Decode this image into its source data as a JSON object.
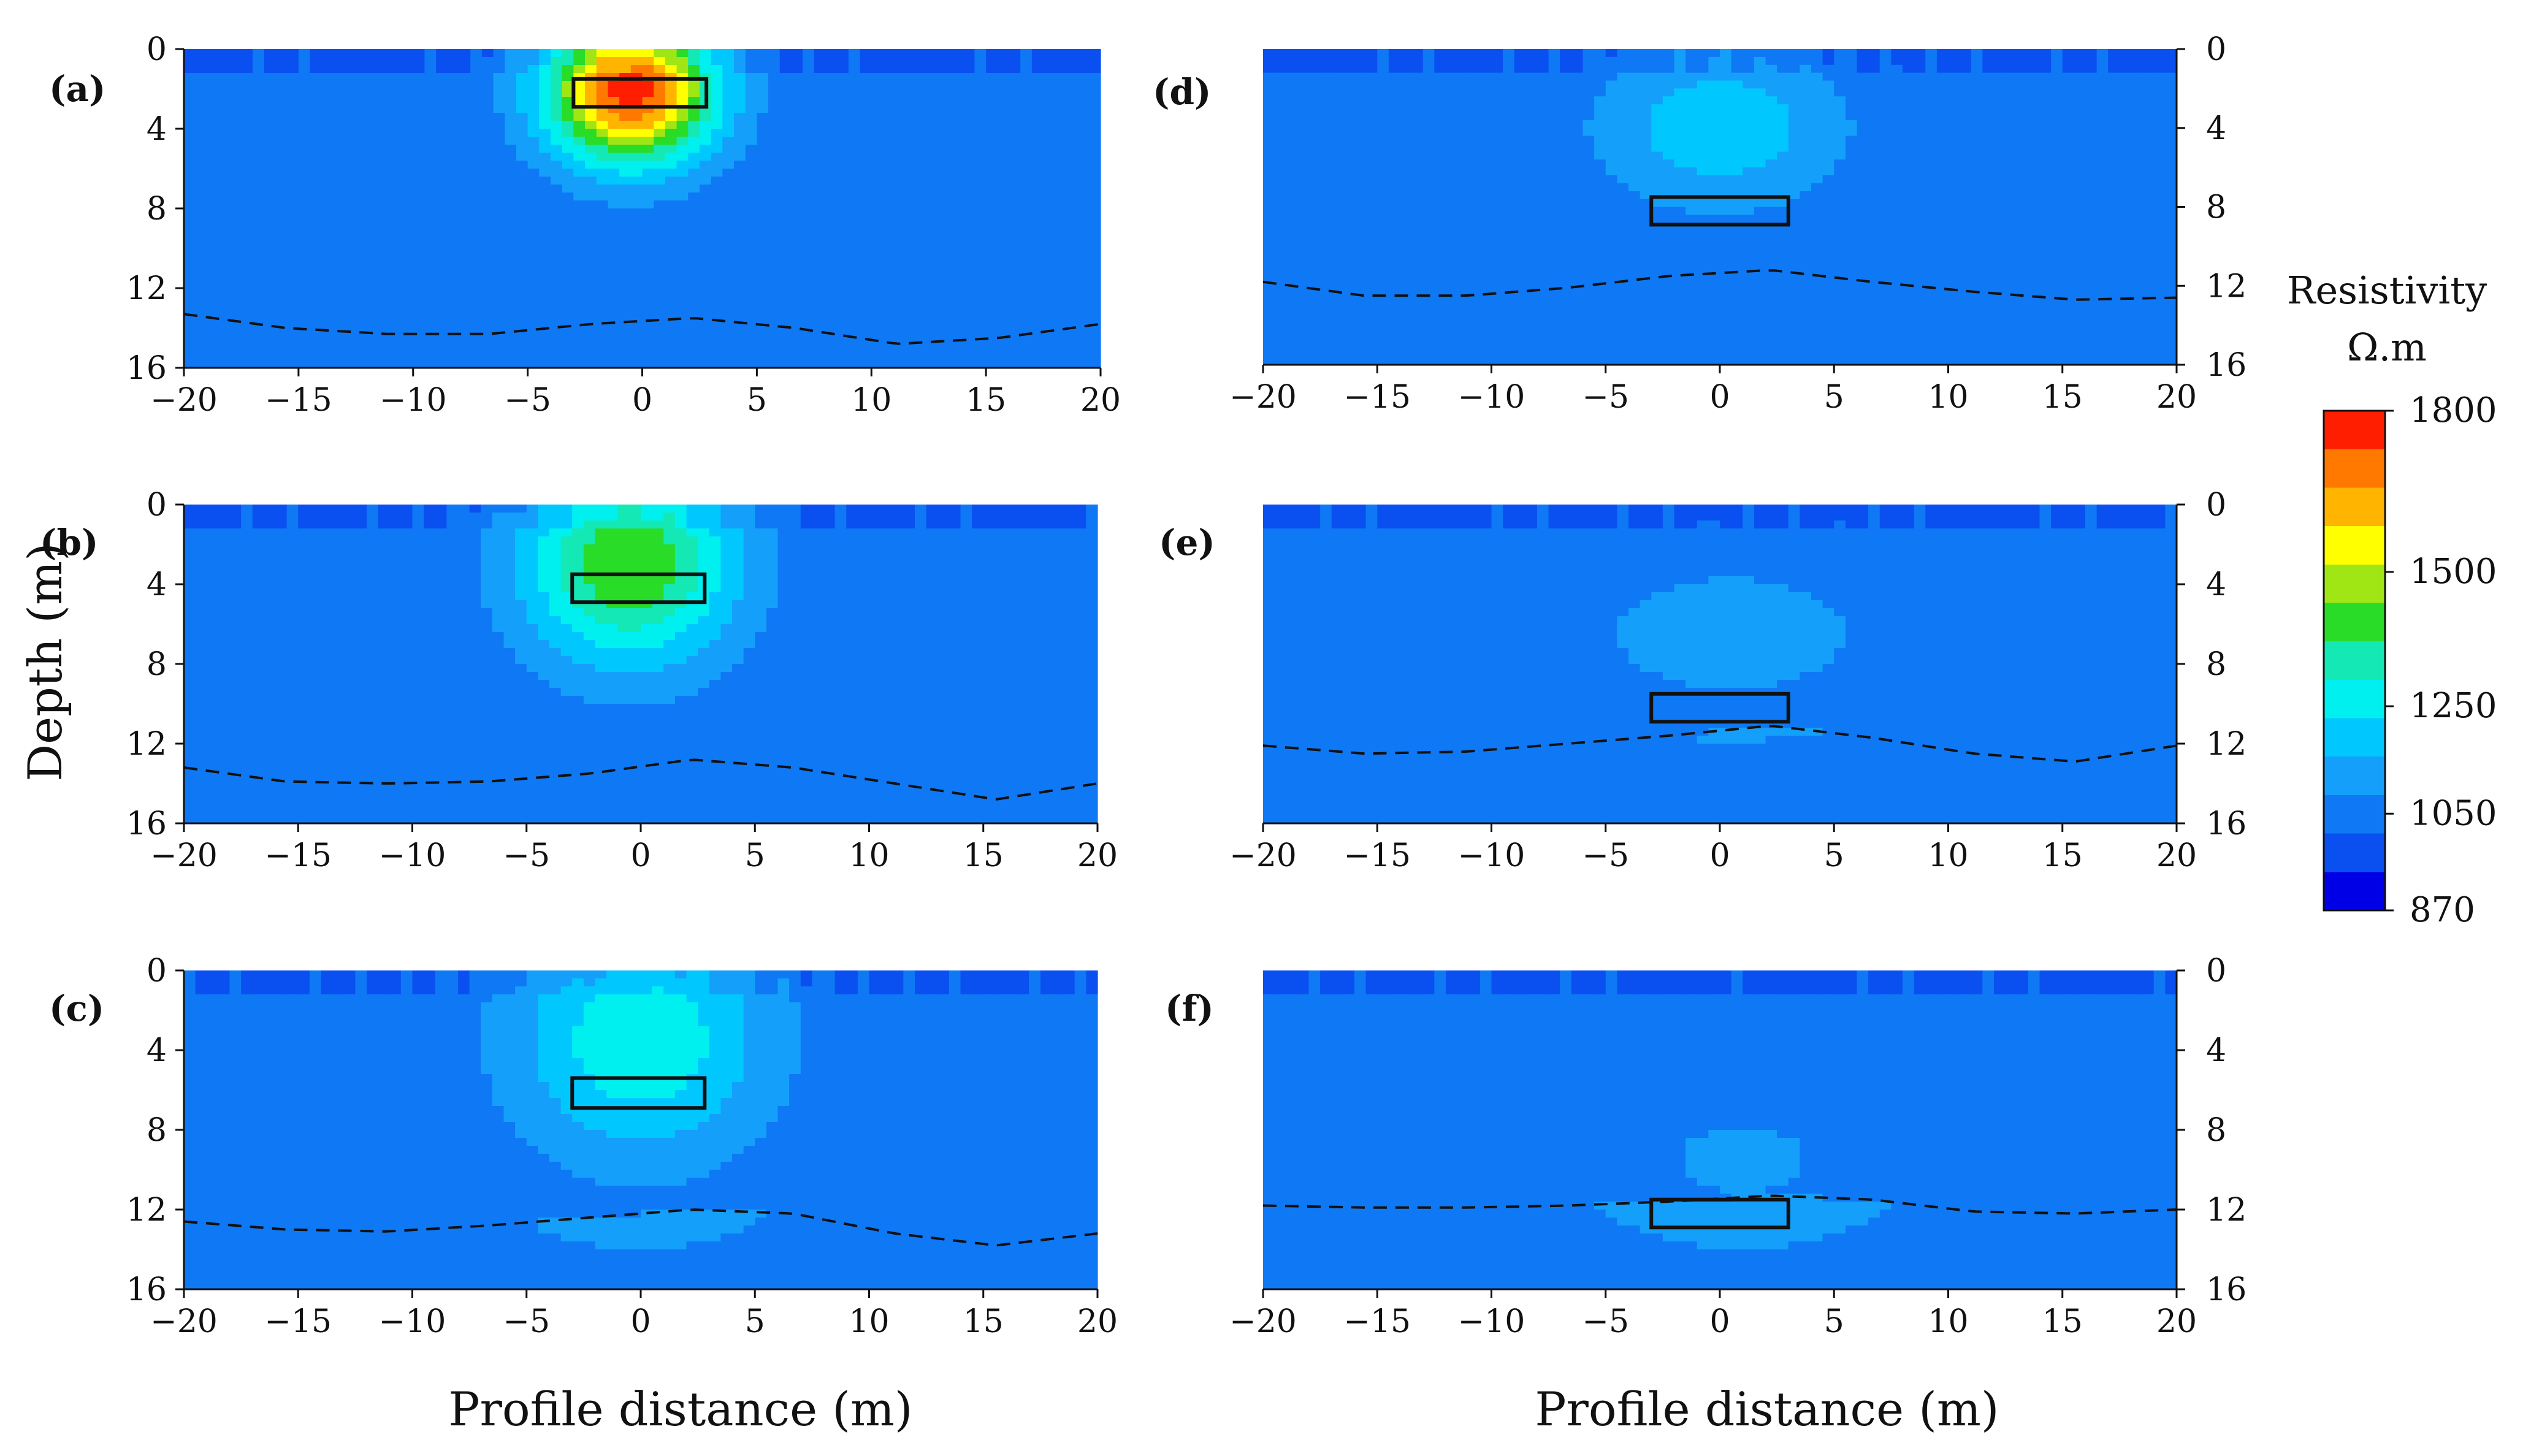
{
  "chart_data": {
    "type": "heatmap",
    "x_label": "Profile distance (m)",
    "y_label": "Depth (m)",
    "x_ticks": [
      "−20",
      "−15",
      "−10",
      "−5",
      "0",
      "5",
      "10",
      "15",
      "20"
    ],
    "y_ticks": [
      "0",
      "4",
      "8",
      "12",
      "16"
    ],
    "xlim": [
      -20,
      20
    ],
    "ylim": [
      0,
      16
    ],
    "colorbar": {
      "title_line1": "Resistivity",
      "title_line2": "Ω.m",
      "tick_labels": [
        "1800",
        "1500",
        "1250",
        "1050",
        "870"
      ],
      "tick_values": [
        1800,
        1500,
        1250,
        1050,
        870
      ],
      "range": [
        870,
        1800
      ],
      "color_stops": [
        "#0000e6",
        "#0a50f0",
        "#0f78f5",
        "#14a0fa",
        "#00c8ff",
        "#00f0f0",
        "#14e8b4",
        "#28dc28",
        "#a0e614",
        "#ffff00",
        "#ffb400",
        "#ff7800",
        "#ff1e00"
      ]
    },
    "background_resistivity": 1000,
    "layer_resistivity": 1050,
    "panels": [
      {
        "label": "(a)",
        "peak_center_x": -0.5,
        "peak_center_depth": 2.0,
        "peak_resistivity": 1800,
        "rx": 5.5,
        "rz": 5.5,
        "anomaly_box": {
          "x0": -3,
          "x1": 2.8,
          "z0": 1.5,
          "z1": 2.9
        },
        "interface_depth": [
          13.3,
          14.0,
          14.3,
          14.3,
          13.8,
          13.5,
          14.0,
          14.8,
          14.5,
          13.8
        ]
      },
      {
        "label": "(b)",
        "peak_center_x": -0.5,
        "peak_center_depth": 3.0,
        "peak_resistivity": 1450,
        "rx": 7.0,
        "rz": 7.5,
        "anomaly_box": {
          "x0": -3,
          "x1": 2.8,
          "z0": 3.5,
          "z1": 4.9
        },
        "interface_depth": [
          13.2,
          13.9,
          14.0,
          13.9,
          13.5,
          12.8,
          13.2,
          14.0,
          14.8,
          14.0
        ]
      },
      {
        "label": "(c)",
        "peak_center_x": 0.0,
        "peak_center_depth": 3.5,
        "peak_resistivity": 1280,
        "rx": 8.5,
        "rz": 9.0,
        "anomaly_box": {
          "x0": -3,
          "x1": 2.8,
          "z0": 5.4,
          "z1": 6.9
        },
        "interface_depth": [
          12.6,
          13.0,
          13.1,
          12.8,
          12.4,
          12.0,
          12.2,
          13.2,
          13.8,
          13.2
        ]
      },
      {
        "label": "(d)",
        "peak_center_x": 0.0,
        "peak_center_depth": 4.0,
        "peak_resistivity": 1200,
        "rx": 8.0,
        "rz": 6.0,
        "anomaly_box": {
          "x0": -3,
          "x1": 3,
          "z0": 7.5,
          "z1": 8.9
        },
        "interface_depth": [
          11.8,
          12.5,
          12.5,
          12.1,
          11.5,
          11.2,
          11.8,
          12.3,
          12.7,
          12.6
        ]
      },
      {
        "label": "(e)",
        "peak_center_x": 0.5,
        "peak_center_depth": 6.5,
        "peak_resistivity": 1110,
        "rx": 10.0,
        "rz": 5.5,
        "anomaly_box": {
          "x0": -3,
          "x1": 3,
          "z0": 9.5,
          "z1": 10.9
        },
        "interface_depth": [
          12.1,
          12.5,
          12.4,
          12.0,
          11.6,
          11.1,
          11.7,
          12.5,
          12.9,
          12.1
        ]
      },
      {
        "label": "(f)",
        "peak_center_x": 1.0,
        "peak_center_depth": 9.5,
        "peak_resistivity": 1080,
        "rx": 8.5,
        "rz": 5.0,
        "anomaly_box": {
          "x0": -3,
          "x1": 3,
          "z0": 11.5,
          "z1": 12.9
        },
        "interface_depth": [
          11.8,
          11.9,
          11.9,
          11.8,
          11.6,
          11.3,
          11.5,
          12.1,
          12.2,
          12.0
        ]
      }
    ]
  }
}
